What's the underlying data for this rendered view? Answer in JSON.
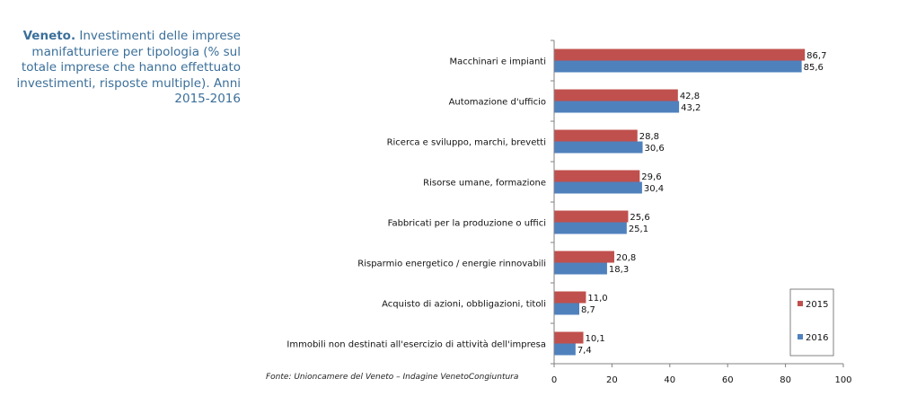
{
  "title": {
    "bold_part": "Veneto.",
    "rest": "Investimenti delle imprese manifatturiere per tipologia (% sul totale imprese che hanno effettuato investimenti, risposte multiple). Anni 2015-2016"
  },
  "source_note": "Fonte: Unioncamere del Veneto – Indagine VenetoCongiuntura",
  "chart_data": {
    "type": "bar",
    "orientation": "horizontal",
    "categories": [
      "Macchinari e impianti",
      "Automazione d'ufficio",
      "Ricerca e sviluppo, marchi, brevetti",
      "Risorse umane, formazione",
      "Fabbricati per la produzione o uffici",
      "Risparmio energetico / energie rinnovabili",
      "Acquisto di azioni, obbligazioni, titoli",
      "Immobili non destinati all'esercizio di attività dell'impresa"
    ],
    "series": [
      {
        "name": "2015",
        "color": "#c0504d",
        "values": [
          86.7,
          42.8,
          28.8,
          29.6,
          25.6,
          20.8,
          11.0,
          10.1
        ],
        "labels": [
          "86,7",
          "42,8",
          "28,8",
          "29,6",
          "25,6",
          "20,8",
          "11,0",
          "10,1"
        ]
      },
      {
        "name": "2016",
        "color": "#4f81bd",
        "values": [
          85.6,
          43.2,
          30.6,
          30.4,
          25.1,
          18.3,
          8.7,
          7.4
        ],
        "labels": [
          "85,6",
          "43,2",
          "30,6",
          "30,4",
          "25,1",
          "18,3",
          "8,7",
          "7,4"
        ]
      }
    ],
    "xlim": [
      0,
      100
    ],
    "xticks": [
      0,
      20,
      40,
      60,
      80,
      100
    ],
    "xtick_labels": [
      "0",
      "20",
      "40",
      "60",
      "80",
      "100"
    ],
    "grid": false,
    "legend_position": "bottom-right"
  }
}
